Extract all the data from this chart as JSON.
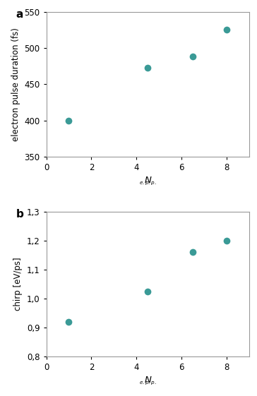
{
  "panel_a": {
    "x": [
      1,
      4.5,
      6.5,
      8
    ],
    "y": [
      400,
      473,
      488,
      525
    ],
    "ylabel": "electron pulse duration (fs)",
    "xlim": [
      0,
      9
    ],
    "ylim": [
      350,
      550
    ],
    "yticks": [
      350,
      400,
      450,
      500,
      550
    ],
    "xticks": [
      0,
      2,
      4,
      6,
      8
    ],
    "label": "a"
  },
  "panel_b": {
    "x": [
      1,
      4.5,
      6.5,
      8
    ],
    "y": [
      0.92,
      1.025,
      1.16,
      1.2
    ],
    "ylabel": "chirp [eV/ps]",
    "xlim": [
      0,
      9
    ],
    "ylim": [
      0.8,
      1.3
    ],
    "yticks": [
      0.8,
      0.9,
      1.0,
      1.1,
      1.2,
      1.3
    ],
    "xticks": [
      0,
      2,
      4,
      6,
      8
    ],
    "label": "b"
  },
  "marker_color": "#3a9a96",
  "marker_size": 7,
  "background_color": "#ffffff",
  "font_size": 8.5,
  "label_fontsize": 11
}
